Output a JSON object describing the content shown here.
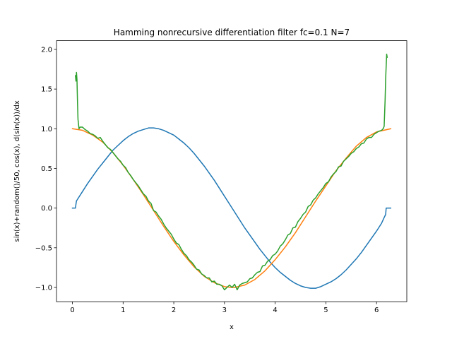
{
  "chart_data": {
    "type": "line",
    "title": "Hamming nonrecursive differentiation filter fc=0.1 N=7",
    "xlabel": "x",
    "ylabel": "sin(x)+random()/50, cos(x),  d(sin(x))/dx",
    "xlim": [
      -0.314,
      6.597
    ],
    "ylim": [
      -1.18,
      2.11
    ],
    "xticks": [
      0,
      1,
      2,
      3,
      4,
      5,
      6
    ],
    "xtick_labels": [
      "0",
      "1",
      "2",
      "3",
      "4",
      "5",
      "6"
    ],
    "yticks": [
      -1.0,
      -0.5,
      0.0,
      0.5,
      1.0,
      1.5,
      2.0
    ],
    "ytick_labels": [
      "−1.0",
      "−0.5",
      "0.0",
      "0.5",
      "1.0",
      "1.5",
      "2.0"
    ],
    "grid": false,
    "legend": false,
    "series": [
      {
        "color": "#1f77b4",
        "x": [
          0.0,
          0.06,
          0.07,
          0.08,
          0.1,
          0.2,
          0.3,
          0.4,
          0.5,
          0.6,
          0.7,
          0.8,
          0.9,
          1.0,
          1.1,
          1.2,
          1.3,
          1.4,
          1.5,
          1.6,
          1.7,
          1.8,
          1.9,
          2.0,
          2.1,
          2.2,
          2.3,
          2.4,
          2.5,
          2.6,
          2.7,
          2.8,
          2.9,
          3.0,
          3.1,
          3.2,
          3.3,
          3.4,
          3.5,
          3.6,
          3.7,
          3.8,
          3.9,
          4.0,
          4.1,
          4.2,
          4.3,
          4.4,
          4.5,
          4.6,
          4.7,
          4.8,
          4.9,
          5.0,
          5.1,
          5.2,
          5.3,
          5.4,
          5.5,
          5.6,
          5.7,
          5.8,
          5.9,
          6.0,
          6.1,
          6.15,
          6.18,
          6.19,
          6.2,
          6.28
        ],
        "y": [
          0.0,
          0.0,
          0.05,
          0.09,
          0.11,
          0.21,
          0.31,
          0.4,
          0.49,
          0.57,
          0.65,
          0.73,
          0.79,
          0.85,
          0.9,
          0.94,
          0.97,
          0.99,
          1.01,
          1.01,
          1.0,
          0.98,
          0.95,
          0.92,
          0.87,
          0.82,
          0.76,
          0.69,
          0.61,
          0.53,
          0.44,
          0.35,
          0.25,
          0.15,
          0.05,
          -0.05,
          -0.15,
          -0.25,
          -0.34,
          -0.43,
          -0.52,
          -0.6,
          -0.68,
          -0.75,
          -0.81,
          -0.86,
          -0.91,
          -0.95,
          -0.98,
          -1.0,
          -1.01,
          -1.01,
          -0.99,
          -0.96,
          -0.93,
          -0.89,
          -0.84,
          -0.78,
          -0.71,
          -0.64,
          -0.56,
          -0.47,
          -0.38,
          -0.29,
          -0.19,
          -0.12,
          -0.08,
          0.0,
          0.0,
          0.0
        ]
      },
      {
        "color": "#ff7f0e",
        "x": [
          0.0,
          0.2,
          0.4,
          0.6,
          0.8,
          1.0,
          1.2,
          1.4,
          1.6,
          1.8,
          2.0,
          2.2,
          2.4,
          2.6,
          2.8,
          3.0,
          3.14,
          3.2,
          3.4,
          3.6,
          3.8,
          4.0,
          4.2,
          4.4,
          4.6,
          4.8,
          5.0,
          5.2,
          5.4,
          5.6,
          5.8,
          6.0,
          6.28
        ],
        "y": [
          1.0,
          0.98,
          0.92,
          0.83,
          0.7,
          0.54,
          0.36,
          0.17,
          -0.03,
          -0.23,
          -0.42,
          -0.59,
          -0.74,
          -0.86,
          -0.94,
          -0.99,
          -1.0,
          -1.0,
          -0.97,
          -0.9,
          -0.79,
          -0.65,
          -0.49,
          -0.31,
          -0.11,
          0.09,
          0.28,
          0.47,
          0.63,
          0.78,
          0.89,
          0.96,
          1.0
        ]
      },
      {
        "color": "#2ca02c",
        "x": [
          0.06,
          0.07,
          0.08,
          0.09,
          0.1,
          0.11,
          0.13,
          0.15,
          0.2,
          0.25,
          0.3,
          0.35,
          0.4,
          0.45,
          0.5,
          0.55,
          0.6,
          0.65,
          0.7,
          0.75,
          0.8,
          0.85,
          0.9,
          0.95,
          1.0,
          1.05,
          1.1,
          1.15,
          1.2,
          1.25,
          1.3,
          1.35,
          1.4,
          1.45,
          1.5,
          1.55,
          1.6,
          1.65,
          1.7,
          1.75,
          1.8,
          1.85,
          1.9,
          1.95,
          2.0,
          2.05,
          2.1,
          2.15,
          2.2,
          2.25,
          2.3,
          2.35,
          2.4,
          2.45,
          2.5,
          2.55,
          2.6,
          2.65,
          2.7,
          2.75,
          2.8,
          2.85,
          2.9,
          2.95,
          3.0,
          3.05,
          3.1,
          3.15,
          3.2,
          3.25,
          3.3,
          3.35,
          3.4,
          3.45,
          3.5,
          3.55,
          3.6,
          3.65,
          3.7,
          3.75,
          3.8,
          3.85,
          3.9,
          3.95,
          4.0,
          4.05,
          4.1,
          4.15,
          4.2,
          4.25,
          4.3,
          4.35,
          4.4,
          4.45,
          4.5,
          4.55,
          4.6,
          4.65,
          4.7,
          4.75,
          4.8,
          4.85,
          4.9,
          4.95,
          5.0,
          5.05,
          5.1,
          5.15,
          5.2,
          5.25,
          5.3,
          5.35,
          5.4,
          5.45,
          5.5,
          5.55,
          5.6,
          5.65,
          5.7,
          5.75,
          5.8,
          5.85,
          5.9,
          5.95,
          6.0,
          6.05,
          6.1,
          6.13,
          6.15,
          6.16,
          6.17,
          6.18,
          6.19,
          6.2,
          6.21
        ],
        "y": [
          1.67,
          1.6,
          1.71,
          1.62,
          1.35,
          1.12,
          1.0,
          1.02,
          1.02,
          0.99,
          0.97,
          0.94,
          0.93,
          0.91,
          0.88,
          0.89,
          0.84,
          0.8,
          0.76,
          0.74,
          0.7,
          0.66,
          0.62,
          0.59,
          0.54,
          0.51,
          0.45,
          0.41,
          0.36,
          0.32,
          0.28,
          0.23,
          0.18,
          0.15,
          0.09,
          0.06,
          -0.03,
          -0.05,
          -0.1,
          -0.14,
          -0.2,
          -0.25,
          -0.29,
          -0.33,
          -0.39,
          -0.44,
          -0.46,
          -0.52,
          -0.57,
          -0.6,
          -0.65,
          -0.68,
          -0.72,
          -0.77,
          -0.78,
          -0.83,
          -0.85,
          -0.88,
          -0.88,
          -0.93,
          -0.92,
          -0.96,
          -0.96,
          -0.98,
          -1.03,
          -1.0,
          -0.97,
          -1.0,
          -0.96,
          -1.03,
          -0.97,
          -0.95,
          -0.94,
          -0.93,
          -0.89,
          -0.88,
          -0.84,
          -0.81,
          -0.8,
          -0.73,
          -0.72,
          -0.67,
          -0.65,
          -0.6,
          -0.58,
          -0.54,
          -0.48,
          -0.45,
          -0.4,
          -0.34,
          -0.32,
          -0.25,
          -0.24,
          -0.17,
          -0.13,
          -0.08,
          -0.05,
          0.02,
          0.04,
          0.1,
          0.13,
          0.18,
          0.22,
          0.26,
          0.31,
          0.33,
          0.39,
          0.43,
          0.46,
          0.52,
          0.53,
          0.59,
          0.62,
          0.65,
          0.69,
          0.71,
          0.75,
          0.77,
          0.81,
          0.82,
          0.87,
          0.89,
          0.89,
          0.93,
          0.95,
          0.97,
          0.98,
          1.0,
          1.03,
          1.2,
          1.38,
          1.63,
          1.79,
          1.94,
          1.9
        ]
      }
    ]
  }
}
